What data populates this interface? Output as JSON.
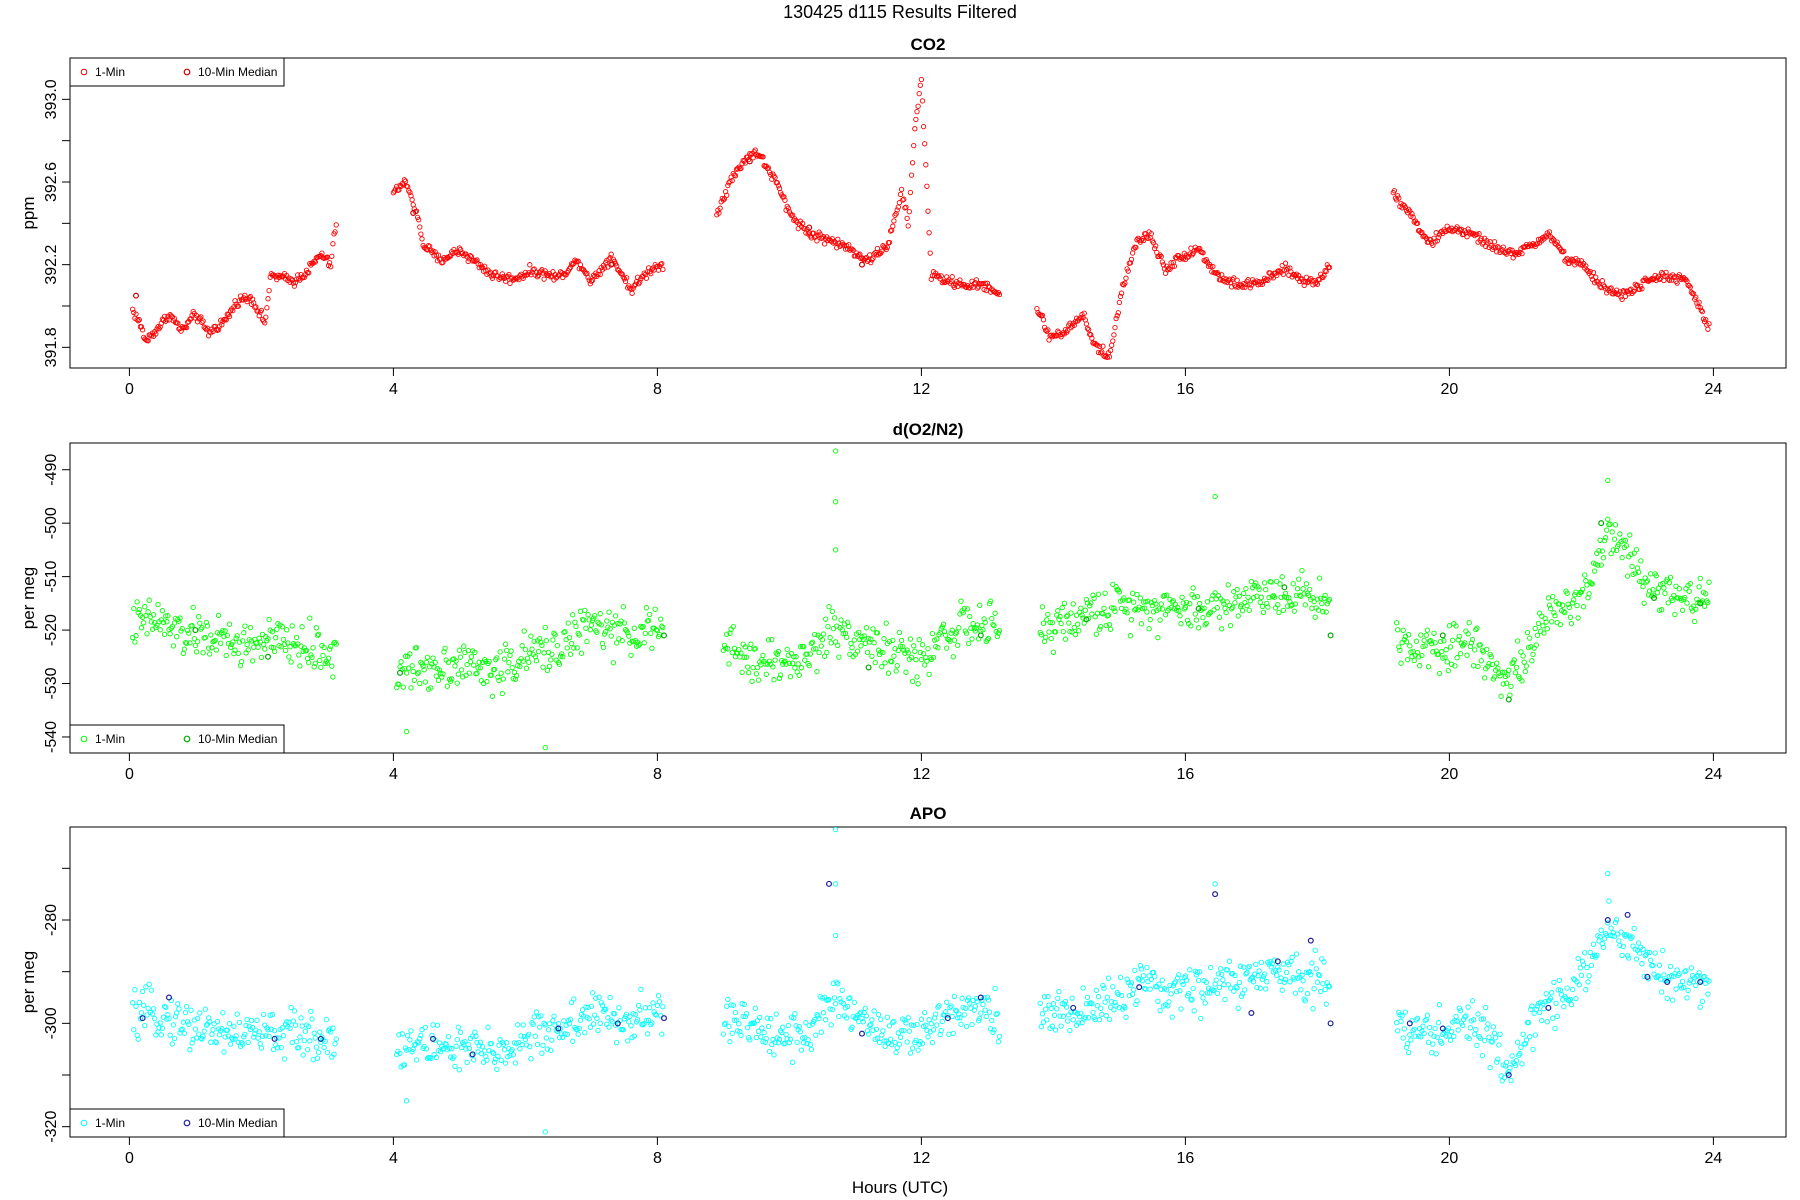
{
  "figure": {
    "title": "130425    d115    Results Filtered",
    "xlabel": "Hours (UTC)"
  },
  "chart_data": [
    {
      "type": "scatter",
      "title": "CO2",
      "ylabel": "ppm",
      "xlim": [
        -0.9,
        25.1
      ],
      "ylim": [
        391.7,
        393.2
      ],
      "xticks": [
        "0",
        "4",
        "8",
        "12",
        "16",
        "20",
        "24"
      ],
      "yticks": [
        "391.8",
        "392.2",
        "392.6",
        "393.0"
      ],
      "minor_yticks": [
        392.0,
        392.4,
        392.8
      ],
      "legend": {
        "position": "top-left",
        "entries": [
          "1-Min",
          "10-Min Median"
        ]
      },
      "colors": {
        "one_min": "#ff0000",
        "median": "#cc0000"
      },
      "anchors": [
        [
          0.05,
          391.98
        ],
        [
          0.15,
          391.92
        ],
        [
          0.25,
          391.83
        ],
        [
          0.45,
          391.9
        ],
        [
          0.6,
          391.96
        ],
        [
          0.8,
          391.88
        ],
        [
          1.0,
          391.96
        ],
        [
          1.2,
          391.87
        ],
        [
          1.45,
          391.93
        ],
        [
          1.65,
          392.03
        ],
        [
          1.85,
          392.04
        ],
        [
          2.05,
          391.92
        ],
        [
          2.15,
          392.15
        ],
        [
          2.5,
          392.12
        ],
        [
          2.7,
          392.17
        ],
        [
          2.9,
          392.25
        ],
        [
          3.05,
          392.2
        ],
        [
          3.15,
          392.45
        ],
        [
          4.0,
          392.55
        ],
        [
          4.2,
          392.6
        ],
        [
          4.35,
          392.45
        ],
        [
          4.45,
          392.3
        ],
        [
          4.7,
          392.22
        ],
        [
          5.0,
          392.27
        ],
        [
          5.3,
          392.2
        ],
        [
          5.5,
          392.15
        ],
        [
          5.8,
          392.13
        ],
        [
          6.1,
          392.17
        ],
        [
          6.5,
          392.14
        ],
        [
          6.8,
          392.22
        ],
        [
          7.0,
          392.12
        ],
        [
          7.3,
          392.24
        ],
        [
          7.6,
          392.08
        ],
        [
          7.9,
          392.18
        ],
        [
          8.1,
          392.2
        ],
        [
          8.9,
          392.45
        ],
        [
          9.1,
          392.6
        ],
        [
          9.3,
          392.7
        ],
        [
          9.5,
          392.75
        ],
        [
          9.8,
          392.6
        ],
        [
          10.0,
          392.45
        ],
        [
          10.3,
          392.35
        ],
        [
          10.6,
          392.32
        ],
        [
          10.9,
          392.28
        ],
        [
          11.2,
          392.22
        ],
        [
          11.5,
          392.3
        ],
        [
          11.7,
          392.55
        ],
        [
          11.8,
          392.4
        ],
        [
          11.9,
          392.85
        ],
        [
          12.0,
          393.1
        ],
        [
          12.15,
          392.15
        ],
        [
          12.4,
          392.12
        ],
        [
          12.7,
          392.1
        ],
        [
          13.0,
          392.1
        ],
        [
          13.2,
          392.05
        ],
        [
          13.75,
          391.99
        ],
        [
          13.95,
          391.85
        ],
        [
          14.2,
          391.88
        ],
        [
          14.45,
          391.96
        ],
        [
          14.6,
          391.82
        ],
        [
          14.85,
          391.75
        ],
        [
          15.05,
          392.1
        ],
        [
          15.25,
          392.3
        ],
        [
          15.45,
          392.35
        ],
        [
          15.7,
          392.18
        ],
        [
          16.0,
          392.25
        ],
        [
          16.2,
          392.28
        ],
        [
          16.4,
          392.18
        ],
        [
          16.6,
          392.12
        ],
        [
          16.9,
          392.1
        ],
        [
          17.2,
          392.12
        ],
        [
          17.5,
          392.18
        ],
        [
          17.8,
          392.12
        ],
        [
          18.0,
          392.12
        ],
        [
          18.2,
          392.2
        ],
        [
          19.15,
          392.55
        ],
        [
          19.4,
          392.45
        ],
        [
          19.7,
          392.3
        ],
        [
          20.0,
          392.38
        ],
        [
          20.3,
          392.35
        ],
        [
          20.6,
          392.3
        ],
        [
          20.9,
          392.25
        ],
        [
          21.2,
          392.28
        ],
        [
          21.5,
          392.35
        ],
        [
          21.8,
          392.22
        ],
        [
          22.0,
          392.2
        ],
        [
          22.3,
          392.1
        ],
        [
          22.6,
          392.05
        ],
        [
          22.9,
          392.1
        ],
        [
          23.2,
          392.15
        ],
        [
          23.6,
          392.12
        ],
        [
          23.95,
          391.88
        ]
      ],
      "noise": 0.018,
      "median_points": [
        [
          0.1,
          392.05
        ],
        [
          4.3,
          392.45
        ],
        [
          7.3,
          392.2
        ],
        [
          9.4,
          392.7
        ],
        [
          10.3,
          392.38
        ],
        [
          11.1,
          392.2
        ]
      ]
    },
    {
      "type": "scatter",
      "title": "d(O2/N2)",
      "ylabel": "per meg",
      "xlim": [
        -0.9,
        25.1
      ],
      "ylim": [
        -543.0,
        -485.0
      ],
      "xticks": [
        "0",
        "4",
        "8",
        "12",
        "16",
        "20",
        "24"
      ],
      "yticks": [
        "-540",
        "-530",
        "-520",
        "-510",
        "-500",
        "-490"
      ],
      "minor_yticks": [],
      "legend": {
        "position": "bottom-left",
        "entries": [
          "1-Min",
          "10-Min Median"
        ]
      },
      "colors": {
        "one_min": "#00ff00",
        "median": "#00aa00"
      },
      "anchors": [
        [
          0.05,
          -519
        ],
        [
          0.4,
          -518
        ],
        [
          0.8,
          -521
        ],
        [
          1.2,
          -521
        ],
        [
          1.6,
          -523
        ],
        [
          2.1,
          -522
        ],
        [
          2.6,
          -523
        ],
        [
          2.9,
          -524
        ],
        [
          3.15,
          -525
        ],
        [
          4.05,
          -528
        ],
        [
          4.5,
          -527
        ],
        [
          5.0,
          -526
        ],
        [
          5.5,
          -528
        ],
        [
          6.0,
          -525
        ],
        [
          6.5,
          -523
        ],
        [
          7.0,
          -519
        ],
        [
          7.4,
          -521
        ],
        [
          7.8,
          -520
        ],
        [
          8.1,
          -520
        ],
        [
          9.0,
          -523
        ],
        [
          9.5,
          -526
        ],
        [
          10.0,
          -526
        ],
        [
          10.3,
          -525
        ],
        [
          10.6,
          -520
        ],
        [
          11.0,
          -521
        ],
        [
          11.5,
          -524
        ],
        [
          12.0,
          -526
        ],
        [
          12.3,
          -521
        ],
        [
          12.7,
          -519
        ],
        [
          13.2,
          -520
        ],
        [
          13.8,
          -520
        ],
        [
          14.3,
          -518
        ],
        [
          14.8,
          -516
        ],
        [
          15.3,
          -515
        ],
        [
          15.8,
          -516
        ],
        [
          16.3,
          -516
        ],
        [
          16.7,
          -515
        ],
        [
          17.2,
          -513
        ],
        [
          17.6,
          -513
        ],
        [
          18.0,
          -514
        ],
        [
          18.2,
          -515
        ],
        [
          19.2,
          -522
        ],
        [
          19.6,
          -523
        ],
        [
          20.0,
          -523
        ],
        [
          20.4,
          -522
        ],
        [
          20.9,
          -530
        ],
        [
          21.3,
          -521
        ],
        [
          21.8,
          -515
        ],
        [
          22.1,
          -512
        ],
        [
          22.4,
          -501
        ],
        [
          22.8,
          -507
        ],
        [
          23.1,
          -512
        ],
        [
          23.6,
          -514
        ],
        [
          23.95,
          -513
        ]
      ],
      "noise": 3.2,
      "outliers": [
        [
          10.7,
          -486.5
        ],
        [
          10.7,
          -496
        ],
        [
          10.7,
          -505
        ],
        [
          6.3,
          -542
        ],
        [
          4.2,
          -539
        ],
        [
          16.45,
          -495
        ],
        [
          22.4,
          -492
        ]
      ],
      "median_points": [
        [
          1.0,
          -520
        ],
        [
          2.1,
          -525
        ],
        [
          4.1,
          -528
        ],
        [
          8.1,
          -521
        ],
        [
          11.2,
          -527
        ],
        [
          12.9,
          -521
        ],
        [
          14.5,
          -518
        ],
        [
          16.2,
          -516
        ],
        [
          17.5,
          -512
        ],
        [
          18.2,
          -521
        ],
        [
          19.9,
          -521
        ],
        [
          20.9,
          -533
        ],
        [
          22.3,
          -500
        ],
        [
          23.1,
          -514
        ],
        [
          23.8,
          -515
        ]
      ]
    },
    {
      "type": "scatter",
      "title": "APO",
      "ylabel": "per meg",
      "xlim": [
        -0.9,
        25.1
      ],
      "ylim": [
        -322.0,
        -262.0
      ],
      "xticks": [
        "0",
        "4",
        "8",
        "12",
        "16",
        "20",
        "24"
      ],
      "yticks": [
        "-320",
        "-300",
        "-280"
      ],
      "minor_yticks": [
        -310,
        -290,
        -270
      ],
      "legend": {
        "position": "bottom-left",
        "entries": [
          "1-Min",
          "10-Min Median"
        ]
      },
      "colors": {
        "one_min": "#00ffff",
        "median": "#2020a0"
      },
      "anchors": [
        [
          0.05,
          -299
        ],
        [
          0.4,
          -298
        ],
        [
          0.8,
          -300
        ],
        [
          1.2,
          -301
        ],
        [
          1.6,
          -302
        ],
        [
          2.1,
          -302
        ],
        [
          2.6,
          -302
        ],
        [
          2.9,
          -303
        ],
        [
          3.15,
          -302
        ],
        [
          4.05,
          -305
        ],
        [
          4.5,
          -304
        ],
        [
          5.0,
          -305
        ],
        [
          5.5,
          -306
        ],
        [
          6.0,
          -303
        ],
        [
          6.5,
          -301
        ],
        [
          7.0,
          -298
        ],
        [
          7.4,
          -300
        ],
        [
          7.8,
          -299
        ],
        [
          8.1,
          -298
        ],
        [
          9.0,
          -299
        ],
        [
          9.5,
          -301
        ],
        [
          10.0,
          -302
        ],
        [
          10.3,
          -302
        ],
        [
          10.6,
          -296
        ],
        [
          11.0,
          -298
        ],
        [
          11.5,
          -302
        ],
        [
          12.0,
          -303
        ],
        [
          12.3,
          -299
        ],
        [
          12.7,
          -296
        ],
        [
          13.2,
          -298
        ],
        [
          13.8,
          -299
        ],
        [
          14.3,
          -298
        ],
        [
          14.8,
          -296
        ],
        [
          15.3,
          -293
        ],
        [
          15.8,
          -294
        ],
        [
          16.3,
          -293
        ],
        [
          16.7,
          -292
        ],
        [
          17.2,
          -291
        ],
        [
          17.6,
          -290
        ],
        [
          18.0,
          -291
        ],
        [
          18.2,
          -291
        ],
        [
          19.2,
          -301
        ],
        [
          19.6,
          -302
        ],
        [
          20.0,
          -301
        ],
        [
          20.4,
          -300
        ],
        [
          20.9,
          -309
        ],
        [
          21.3,
          -299
        ],
        [
          21.8,
          -293
        ],
        [
          22.1,
          -290
        ],
        [
          22.4,
          -281
        ],
        [
          22.8,
          -285
        ],
        [
          23.1,
          -290
        ],
        [
          23.6,
          -292
        ],
        [
          23.95,
          -292
        ]
      ],
      "noise": 3.4,
      "outliers": [
        [
          10.7,
          -262.5
        ],
        [
          10.7,
          -273
        ],
        [
          10.7,
          -283
        ],
        [
          6.3,
          -321
        ],
        [
          4.2,
          -315
        ],
        [
          16.45,
          -273
        ],
        [
          22.4,
          -271
        ]
      ],
      "median_points": [
        [
          0.2,
          -299
        ],
        [
          0.6,
          -295
        ],
        [
          2.2,
          -303
        ],
        [
          2.9,
          -303
        ],
        [
          4.6,
          -303
        ],
        [
          5.2,
          -306
        ],
        [
          6.5,
          -301
        ],
        [
          7.4,
          -300
        ],
        [
          8.1,
          -299
        ],
        [
          10.6,
          -273
        ],
        [
          11.1,
          -302
        ],
        [
          12.4,
          -299
        ],
        [
          12.9,
          -295
        ],
        [
          14.3,
          -297
        ],
        [
          15.3,
          -293
        ],
        [
          16.45,
          -275
        ],
        [
          17.0,
          -298
        ],
        [
          17.4,
          -288
        ],
        [
          17.9,
          -284
        ],
        [
          18.2,
          -300
        ],
        [
          19.4,
          -300
        ],
        [
          19.9,
          -301
        ],
        [
          20.9,
          -310
        ],
        [
          21.5,
          -297
        ],
        [
          22.4,
          -280
        ],
        [
          22.7,
          -279
        ],
        [
          23.0,
          -291
        ],
        [
          23.3,
          -292
        ],
        [
          23.8,
          -292
        ]
      ]
    }
  ]
}
